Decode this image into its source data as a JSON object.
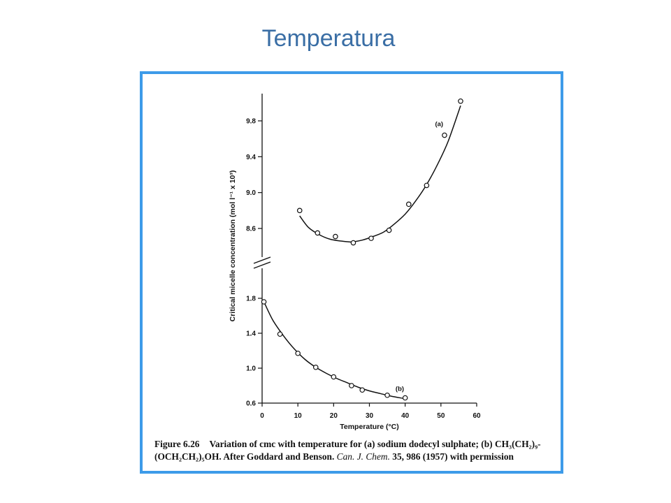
{
  "slide": {
    "title": "Temperatura"
  },
  "chart_data": {
    "type": "scatter",
    "xlabel": "Temperature (°C)",
    "ylabel": "Critical micelle concentration (mol l⁻¹ x 10³)",
    "xlim": [
      0,
      60
    ],
    "x_ticks": [
      0,
      10,
      20,
      30,
      40,
      50,
      60
    ],
    "x_tick_labels": [
      "0",
      "10",
      "20",
      "30",
      "40",
      "50",
      "60"
    ],
    "broken_y_axis": true,
    "upper_ylim": [
      8.4,
      10.2
    ],
    "upper_y_ticks": [
      8.6,
      9.0,
      9.4,
      9.8
    ],
    "upper_y_tick_labels": [
      "8.6",
      "9.0",
      "9.4",
      "9.8"
    ],
    "lower_ylim": [
      0.6,
      2.0
    ],
    "lower_y_ticks": [
      0.6,
      1.0,
      1.4,
      1.8
    ],
    "lower_y_tick_labels": [
      "0.6",
      "1.0",
      "1.4",
      "1.8"
    ],
    "series": [
      {
        "name": "(a)",
        "panel": "upper",
        "x": [
          10.5,
          15.5,
          20.5,
          25.5,
          30.5,
          35.5,
          41,
          46,
          51,
          55.5
        ],
        "y": [
          8.8,
          8.55,
          8.51,
          8.44,
          8.49,
          8.58,
          8.87,
          9.08,
          9.64,
          10.02
        ],
        "fit_x": [
          10.5,
          13,
          16,
          19,
          22,
          25,
          28,
          31,
          34,
          37,
          40,
          43,
          46,
          49,
          52,
          55.5
        ],
        "fit_y": [
          8.74,
          8.61,
          8.53,
          8.48,
          8.46,
          8.45,
          8.47,
          8.51,
          8.56,
          8.65,
          8.76,
          8.91,
          9.09,
          9.31,
          9.57,
          9.97
        ]
      },
      {
        "name": "(b)",
        "panel": "lower",
        "x": [
          0.5,
          5,
          10,
          15,
          20,
          25,
          28,
          35,
          40
        ],
        "y": [
          1.76,
          1.39,
          1.17,
          1.01,
          0.9,
          0.8,
          0.75,
          0.69,
          0.66
        ],
        "fit_x": [
          0.5,
          3,
          6,
          9,
          12,
          15,
          18,
          21,
          24,
          27,
          30,
          33,
          36,
          40
        ],
        "fit_y": [
          1.76,
          1.55,
          1.37,
          1.22,
          1.1,
          1.01,
          0.94,
          0.88,
          0.83,
          0.78,
          0.74,
          0.71,
          0.68,
          0.65
        ]
      }
    ]
  },
  "caption": {
    "fig_label": "Figure 6.26",
    "line1": "Variation of cmc with temperature for (a) sodium dodecyl sulphate; (b) CH₃(CH₂)₉-",
    "line2_a": "(OCH₂CH₂)₅OH. After Goddard and Benson. ",
    "line2_journal": "Can. J. Chem.",
    "line2_b": " 35, 986 (1957) with permission"
  },
  "colors": {
    "title": "#3a6ea5",
    "frame_border": "#3d9be9",
    "ink": "#111111"
  }
}
